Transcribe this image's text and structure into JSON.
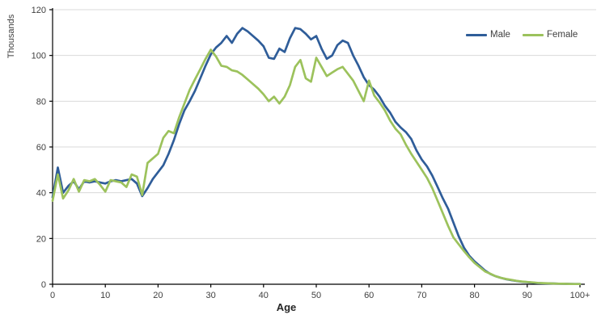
{
  "chart_data": {
    "type": "line",
    "title": "",
    "ylabel": "Thousands",
    "xlabel": "Age",
    "ylim": [
      0,
      120
    ],
    "xlim": [
      0,
      100
    ],
    "y_ticks": [
      0,
      20,
      40,
      60,
      80,
      100,
      120
    ],
    "x_ticks": [
      0,
      10,
      20,
      30,
      40,
      50,
      60,
      70,
      80,
      90,
      100
    ],
    "x_tick_labels": [
      "0",
      "10",
      "20",
      "30",
      "40",
      "50",
      "60",
      "70",
      "80",
      "90",
      "100+"
    ],
    "grid": "horizontal",
    "legend_position": "top-right",
    "x": [
      0,
      1,
      2,
      3,
      4,
      5,
      6,
      7,
      8,
      9,
      10,
      11,
      12,
      13,
      14,
      15,
      16,
      17,
      18,
      19,
      20,
      21,
      22,
      23,
      24,
      25,
      26,
      27,
      28,
      29,
      30,
      31,
      32,
      33,
      34,
      35,
      36,
      37,
      38,
      39,
      40,
      41,
      42,
      43,
      44,
      45,
      46,
      47,
      48,
      49,
      50,
      51,
      52,
      53,
      54,
      55,
      56,
      57,
      58,
      59,
      60,
      61,
      62,
      63,
      64,
      65,
      66,
      67,
      68,
      69,
      70,
      71,
      72,
      73,
      74,
      75,
      76,
      77,
      78,
      79,
      80,
      81,
      82,
      83,
      84,
      85,
      86,
      87,
      88,
      89,
      90,
      91,
      92,
      93,
      94,
      95,
      96,
      97,
      98,
      99,
      100
    ],
    "series": [
      {
        "name": "Male",
        "color": "#2F5D99",
        "values": [
          38,
          51,
          40,
          43,
          45,
          41.5,
          45,
          44.5,
          45,
          44.5,
          44,
          45,
          45.5,
          45,
          45.5,
          46,
          44,
          38.5,
          42,
          46,
          49,
          52,
          57,
          63,
          70,
          76,
          80,
          84.5,
          90,
          95.5,
          100.5,
          103.5,
          105.5,
          108.5,
          105.5,
          109.5,
          112,
          110.5,
          108.5,
          106.5,
          104,
          99,
          98.5,
          103,
          101.5,
          107.5,
          112,
          111.5,
          109.5,
          107,
          108.5,
          103,
          98.5,
          100,
          104.5,
          106.5,
          105.5,
          100,
          95.5,
          90.5,
          87,
          85,
          82,
          78,
          75,
          71,
          68.5,
          66.5,
          63.5,
          58.5,
          54.5,
          51.5,
          47.5,
          42.5,
          37.5,
          33,
          27,
          21,
          16,
          12.5,
          10,
          8,
          6,
          4.5,
          3.5,
          2.8,
          2.2,
          1.8,
          1.4,
          1.1,
          0.9,
          0.7,
          0.5,
          0.4,
          0.35,
          0.3,
          0.25,
          0.2,
          0.15,
          0.1,
          0.1
        ]
      },
      {
        "name": "Female",
        "color": "#9CC25C",
        "values": [
          36.5,
          48,
          37.5,
          41,
          46,
          40.5,
          45.5,
          45,
          46,
          43.5,
          40.5,
          45.5,
          45,
          44.5,
          42.5,
          48,
          47,
          39,
          53,
          55,
          57,
          64,
          67,
          66,
          73,
          79,
          85,
          89.5,
          94,
          98.5,
          102.5,
          99.5,
          95.5,
          95,
          93.5,
          93,
          91.5,
          89.5,
          87.5,
          85.5,
          83,
          80,
          82,
          79,
          82,
          87,
          95,
          98,
          90,
          88.5,
          99,
          95,
          91,
          92.5,
          94,
          95,
          92,
          89,
          84.5,
          80,
          89,
          82.5,
          79.5,
          76,
          71.5,
          68,
          65.5,
          61,
          57,
          53.5,
          50,
          46.5,
          42,
          36.5,
          31,
          25.5,
          20.5,
          17.5,
          14.5,
          11.8,
          9.3,
          7.5,
          5.6,
          4.6,
          3.5,
          2.8,
          2.3,
          1.9,
          1.5,
          1.2,
          1.0,
          0.8,
          0.6,
          0.5,
          0.4,
          0.3,
          0.25,
          0.2,
          0.15,
          0.1,
          0.1
        ]
      }
    ]
  },
  "colors": {
    "background": "#FFFFFF",
    "grid": "#D9D9D9",
    "axis": "#000000",
    "tick_text": "#404040",
    "axis_title_text": "#262626"
  }
}
